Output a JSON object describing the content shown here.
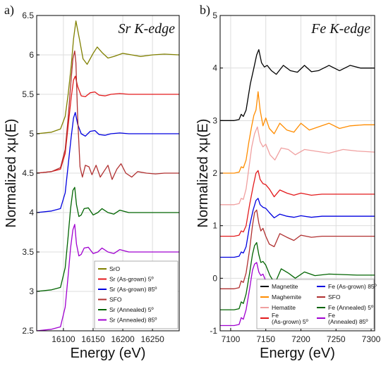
{
  "chart_data": [
    {
      "panel_label": "a)",
      "type": "line",
      "title": "Sr K-edge",
      "xlabel": "Energy (eV)",
      "ylabel": "Normalized xμ(E)",
      "xlim": [
        16055,
        16295
      ],
      "ylim": [
        2.5,
        6.5
      ],
      "xticks": [
        16100,
        16150,
        16200,
        16250
      ],
      "yticks": [
        2.5,
        3,
        3.5,
        4,
        4.5,
        5,
        5.5,
        6,
        6.5
      ],
      "ytick_labels": [
        "2.5",
        "3",
        "3.5",
        "4",
        "4.5",
        "5",
        "5.5",
        "6",
        "6.5"
      ],
      "grid": true,
      "legend_position": "bottom-right",
      "series": [
        {
          "name": "SrO",
          "color": "#808000",
          "x": [
            16055,
            16080,
            16095,
            16103,
            16108,
            16113,
            16117,
            16121,
            16127,
            16133,
            16140,
            16150,
            16157,
            16165,
            16175,
            16185,
            16200,
            16215,
            16230,
            16250,
            16270,
            16295
          ],
          "y": [
            5.0,
            5.02,
            5.06,
            5.22,
            5.5,
            5.85,
            6.2,
            6.43,
            6.2,
            5.95,
            5.88,
            6.02,
            6.1,
            6.03,
            5.96,
            5.98,
            6.02,
            6.0,
            5.98,
            6.0,
            6.01,
            6.0
          ]
        },
        {
          "name": "Sr (As-grown) 5º",
          "color": "#e31a1c",
          "x": [
            16055,
            16080,
            16095,
            16103,
            16108,
            16113,
            16117,
            16120,
            16124,
            16130,
            16137,
            16145,
            16153,
            16160,
            16170,
            16180,
            16195,
            16210,
            16230,
            16250,
            16270,
            16295
          ],
          "y": [
            4.5,
            4.52,
            4.55,
            4.75,
            5.1,
            5.45,
            5.68,
            5.73,
            5.6,
            5.48,
            5.47,
            5.52,
            5.53,
            5.49,
            5.48,
            5.5,
            5.51,
            5.5,
            5.5,
            5.5,
            5.5,
            5.5
          ]
        },
        {
          "name": "Sr (As-grown) 85º",
          "color": "#0000e0",
          "x": [
            16055,
            16080,
            16095,
            16103,
            16108,
            16113,
            16117,
            16120,
            16124,
            16130,
            16137,
            16145,
            16153,
            16160,
            16170,
            16180,
            16195,
            16210,
            16230,
            16250,
            16270,
            16295
          ],
          "y": [
            4.0,
            4.02,
            4.05,
            4.25,
            4.6,
            4.95,
            5.2,
            5.27,
            5.12,
            5.0,
            4.97,
            5.03,
            5.04,
            4.99,
            4.98,
            5.0,
            5.01,
            5.0,
            5.0,
            5.0,
            5.0,
            5.0
          ]
        },
        {
          "name": "SFO",
          "color": "#b03030",
          "x": [
            16055,
            16080,
            16095,
            16103,
            16108,
            16112,
            16116,
            16119,
            16121,
            16124,
            16128,
            16132,
            16137,
            16143,
            16148,
            16155,
            16162,
            16168,
            16175,
            16182,
            16190,
            16197,
            16205,
            16215,
            16225,
            16240,
            16255,
            16270,
            16295
          ],
          "y": [
            4.5,
            4.52,
            4.57,
            4.8,
            5.2,
            5.6,
            5.95,
            6.05,
            5.9,
            5.2,
            4.58,
            4.45,
            4.6,
            4.58,
            4.48,
            4.6,
            4.45,
            4.52,
            4.6,
            4.42,
            4.55,
            4.62,
            4.5,
            4.45,
            4.52,
            4.5,
            4.49,
            4.5,
            4.5
          ]
        },
        {
          "name": "Sr (Annealed) 5º",
          "color": "#006400",
          "x": [
            16055,
            16080,
            16095,
            16103,
            16108,
            16112,
            16116,
            16119,
            16122,
            16126,
            16130,
            16135,
            16142,
            16150,
            16158,
            16165,
            16175,
            16185,
            16195,
            16210,
            16225,
            16240,
            16260,
            16295
          ],
          "y": [
            3.0,
            3.02,
            3.05,
            3.3,
            3.7,
            4.05,
            4.28,
            4.32,
            4.1,
            3.95,
            3.97,
            4.05,
            4.06,
            3.97,
            4.0,
            4.05,
            4.0,
            3.98,
            4.03,
            4.0,
            4.0,
            4.0,
            4.0,
            4.0
          ]
        },
        {
          "name": "Sr (Annealed) 85º",
          "color": "#a000d0",
          "x": [
            16055,
            16080,
            16095,
            16103,
            16108,
            16112,
            16116,
            16119,
            16122,
            16126,
            16130,
            16135,
            16142,
            16150,
            16158,
            16165,
            16175,
            16185,
            16195,
            16210,
            16225,
            16240,
            16260,
            16295
          ],
          "y": [
            2.5,
            2.52,
            2.55,
            2.8,
            3.2,
            3.55,
            3.78,
            3.85,
            3.6,
            3.45,
            3.47,
            3.55,
            3.56,
            3.48,
            3.5,
            3.55,
            3.5,
            3.48,
            3.53,
            3.5,
            3.5,
            3.5,
            3.5,
            3.5
          ]
        }
      ]
    },
    {
      "panel_label": "b)",
      "type": "line",
      "title": "Fe K-edge",
      "xlabel": "Energy (eV)",
      "ylabel": "Normalized xμ(E)",
      "xlim": [
        7085,
        7305
      ],
      "ylim": [
        -1,
        5
      ],
      "xticks": [
        7100,
        7150,
        7200,
        7250,
        7300
      ],
      "yticks": [
        -1,
        0,
        1,
        2,
        3,
        4,
        5
      ],
      "ytick_labels": [
        "-1",
        "0",
        "1",
        "2",
        "3",
        "4",
        "5"
      ],
      "grid": true,
      "legend_position": "bottom",
      "series": [
        {
          "name": "Magnetite",
          "color": "#000000",
          "x": [
            7085,
            7105,
            7112,
            7115,
            7118,
            7122,
            7128,
            7133,
            7137,
            7140,
            7144,
            7148,
            7152,
            7158,
            7165,
            7175,
            7185,
            7195,
            7205,
            7215,
            7225,
            7240,
            7255,
            7270,
            7285,
            7305
          ],
          "y": [
            3.0,
            3.0,
            3.02,
            3.12,
            3.08,
            3.2,
            3.7,
            4.0,
            4.25,
            4.35,
            4.1,
            4.02,
            4.05,
            3.95,
            3.88,
            4.05,
            3.95,
            3.92,
            4.05,
            3.93,
            3.95,
            4.05,
            3.95,
            4.05,
            4.0,
            4.0
          ]
        },
        {
          "name": "Maghemite",
          "color": "#ff8c00",
          "x": [
            7085,
            7105,
            7112,
            7115,
            7118,
            7122,
            7126,
            7130,
            7133,
            7136,
            7139,
            7142,
            7146,
            7150,
            7155,
            7162,
            7170,
            7180,
            7190,
            7200,
            7212,
            7225,
            7240,
            7255,
            7270,
            7290,
            7305
          ],
          "y": [
            2.0,
            2.0,
            2.02,
            2.12,
            2.1,
            2.25,
            2.6,
            2.9,
            3.1,
            3.2,
            3.55,
            3.2,
            2.9,
            3.05,
            2.85,
            2.75,
            2.95,
            2.82,
            2.78,
            2.95,
            2.82,
            2.88,
            2.95,
            2.85,
            2.9,
            2.92,
            2.92
          ]
        },
        {
          "name": "Hematite",
          "color": "#f0a0a0",
          "x": [
            7085,
            7105,
            7112,
            7115,
            7118,
            7122,
            7126,
            7130,
            7134,
            7138,
            7142,
            7146,
            7150,
            7156,
            7163,
            7172,
            7182,
            7192,
            7205,
            7220,
            7240,
            7260,
            7280,
            7305
          ],
          "y": [
            1.4,
            1.4,
            1.42,
            1.52,
            1.5,
            1.7,
            2.1,
            2.5,
            2.75,
            2.88,
            2.6,
            2.5,
            2.55,
            2.35,
            2.25,
            2.48,
            2.45,
            2.35,
            2.45,
            2.42,
            2.38,
            2.45,
            2.42,
            2.4
          ]
        },
        {
          "name": "Fe (As-grown) 5º",
          "color": "#e31a1c",
          "x": [
            7085,
            7105,
            7112,
            7115,
            7118,
            7122,
            7127,
            7132,
            7136,
            7139,
            7142,
            7146,
            7150,
            7155,
            7162,
            7170,
            7180,
            7190,
            7200,
            7215,
            7230,
            7250,
            7270,
            7305
          ],
          "y": [
            0.8,
            0.8,
            0.82,
            0.9,
            0.88,
            1.0,
            1.4,
            1.75,
            2.0,
            2.05,
            1.88,
            1.8,
            1.78,
            1.7,
            1.55,
            1.68,
            1.62,
            1.58,
            1.62,
            1.58,
            1.6,
            1.6,
            1.6,
            1.6
          ]
        },
        {
          "name": "Fe (As-grown) 85º",
          "color": "#0000e0",
          "x": [
            7085,
            7105,
            7112,
            7115,
            7118,
            7122,
            7127,
            7132,
            7136,
            7139,
            7142,
            7146,
            7150,
            7155,
            7162,
            7170,
            7180,
            7190,
            7200,
            7215,
            7230,
            7250,
            7270,
            7305
          ],
          "y": [
            0.4,
            0.4,
            0.42,
            0.5,
            0.48,
            0.6,
            1.0,
            1.3,
            1.48,
            1.52,
            1.4,
            1.35,
            1.33,
            1.25,
            1.15,
            1.22,
            1.18,
            1.16,
            1.19,
            1.16,
            1.18,
            1.18,
            1.18,
            1.18
          ]
        },
        {
          "name": "SFO",
          "color": "#b03030",
          "x": [
            7085,
            7105,
            7112,
            7115,
            7118,
            7122,
            7127,
            7131,
            7134,
            7137,
            7140,
            7143,
            7146,
            7150,
            7155,
            7162,
            7170,
            7180,
            7190,
            7200,
            7215,
            7230,
            7250,
            7270,
            7305
          ],
          "y": [
            -0.2,
            -0.2,
            -0.18,
            -0.05,
            -0.08,
            0.1,
            0.55,
            1.0,
            1.25,
            1.3,
            1.05,
            0.9,
            0.95,
            0.8,
            0.65,
            0.6,
            0.85,
            0.78,
            0.72,
            0.82,
            0.78,
            0.8,
            0.8,
            0.8,
            0.8
          ]
        },
        {
          "name": "Fe (Annealed) 5º",
          "color": "#006400",
          "x": [
            7085,
            7105,
            7112,
            7115,
            7118,
            7122,
            7127,
            7131,
            7134,
            7137,
            7140,
            7143,
            7146,
            7150,
            7156,
            7163,
            7172,
            7182,
            7192,
            7205,
            7220,
            7240,
            7260,
            7280,
            7305
          ],
          "y": [
            -0.6,
            -0.6,
            -0.58,
            -0.45,
            -0.48,
            -0.3,
            0.1,
            0.45,
            0.62,
            0.68,
            0.45,
            0.3,
            0.32,
            0.25,
            0.05,
            -0.1,
            0.18,
            0.1,
            0.0,
            0.12,
            0.05,
            0.08,
            0.07,
            0.06,
            0.06
          ]
        },
        {
          "name": "Fe (Annealed) 85º",
          "color": "#a000d0",
          "x": [
            7085,
            7105,
            7112,
            7115,
            7118,
            7122,
            7127,
            7131,
            7134,
            7137,
            7140,
            7143,
            7146,
            7150,
            7156,
            7163,
            7172,
            7182,
            7192,
            7205,
            7220,
            7240,
            7260,
            7280,
            7305
          ],
          "y": [
            -0.9,
            -0.9,
            -0.88,
            -0.75,
            -0.78,
            -0.6,
            -0.2,
            0.15,
            0.27,
            0.3,
            0.12,
            0.05,
            0.08,
            -0.05,
            -0.22,
            -0.35,
            -0.12,
            -0.18,
            -0.26,
            -0.14,
            -0.18,
            -0.15,
            -0.16,
            -0.17,
            -0.17
          ]
        }
      ],
      "legend_layout": [
        [
          "Magnetite",
          "Fe (As-grown) 85º"
        ],
        [
          "Maghemite",
          "SFO"
        ],
        [
          "Hematite",
          "Fe (Annealed) 5º"
        ],
        [
          "Fe (As-grown) 5º",
          "Fe (Annealed) 85º"
        ]
      ]
    }
  ]
}
